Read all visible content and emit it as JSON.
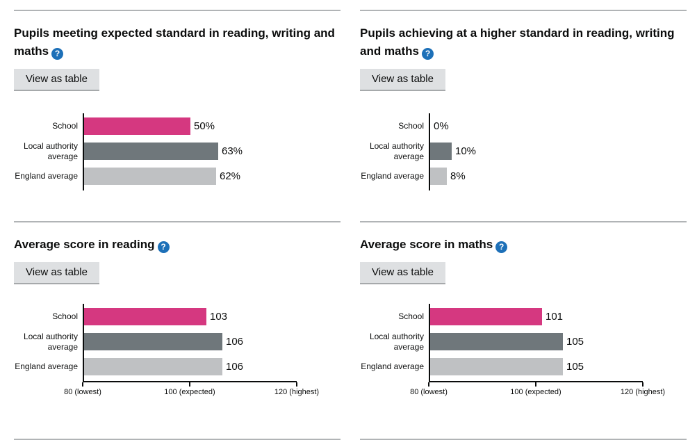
{
  "ui": {
    "view_as_table_label": "View as table",
    "help_icon_glyph": "?"
  },
  "colors": {
    "series": [
      "#d53880",
      "#6f777b",
      "#bfc1c3"
    ],
    "axis": "#0b0c0c",
    "help_icon_bg": "#1d70b8",
    "button_bg": "#dee0e2",
    "button_shadow": "#a6a9ab",
    "divider": "#b1b4b6"
  },
  "chart_data": [
    {
      "type": "bar",
      "orientation": "horizontal",
      "title": "Pupils meeting expected standard in reading, writing and maths",
      "categories": [
        "School",
        "Local authority average",
        "England average"
      ],
      "values": [
        50,
        63,
        62
      ],
      "value_labels": [
        "50%",
        "63%",
        "62%"
      ],
      "xlim": [
        0,
        100
      ],
      "x_ticks": [],
      "grid": false,
      "legend": false
    },
    {
      "type": "bar",
      "orientation": "horizontal",
      "title": "Pupils achieving at a higher standard in reading, writing and maths",
      "categories": [
        "School",
        "Local authority average",
        "England average"
      ],
      "values": [
        0,
        10,
        8
      ],
      "value_labels": [
        "0%",
        "10%",
        "8%"
      ],
      "xlim": [
        0,
        100
      ],
      "x_ticks": [],
      "grid": false,
      "legend": false
    },
    {
      "type": "bar",
      "orientation": "horizontal",
      "title": "Average score in reading",
      "categories": [
        "School",
        "Local authority average",
        "England average"
      ],
      "values": [
        103,
        106,
        106
      ],
      "value_labels": [
        "103",
        "106",
        "106"
      ],
      "xlim": [
        80,
        120
      ],
      "x_ticks": [
        {
          "value": 80,
          "label": "80 (lowest)"
        },
        {
          "value": 100,
          "label": "100 (expected)"
        },
        {
          "value": 120,
          "label": "120 (highest)"
        }
      ],
      "grid": false,
      "legend": false
    },
    {
      "type": "bar",
      "orientation": "horizontal",
      "title": "Average score in maths",
      "categories": [
        "School",
        "Local authority average",
        "England average"
      ],
      "values": [
        101,
        105,
        105
      ],
      "value_labels": [
        "101",
        "105",
        "105"
      ],
      "xlim": [
        80,
        120
      ],
      "x_ticks": [
        {
          "value": 80,
          "label": "80 (lowest)"
        },
        {
          "value": 100,
          "label": "100 (expected)"
        },
        {
          "value": 120,
          "label": "120 (highest)"
        }
      ],
      "grid": false,
      "legend": false
    }
  ]
}
